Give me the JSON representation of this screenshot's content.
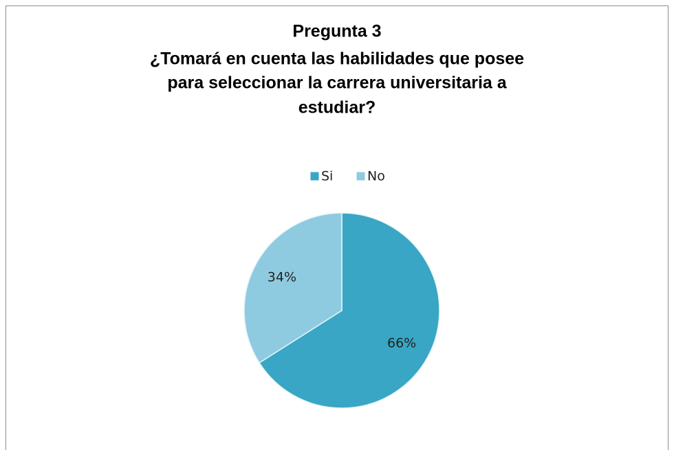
{
  "chart_data": {
    "type": "pie",
    "title": [
      "Pregunta 3",
      "¿Tomará en cuenta las habilidades que posee",
      "para seleccionar la carrera universitaria a",
      "estudiar?"
    ],
    "categories": [
      "Si",
      "No"
    ],
    "values": [
      66,
      34
    ],
    "value_labels": [
      "66%",
      "34%"
    ],
    "colors": [
      "#38a6c4",
      "#8fcbe0"
    ],
    "legend": "top"
  }
}
